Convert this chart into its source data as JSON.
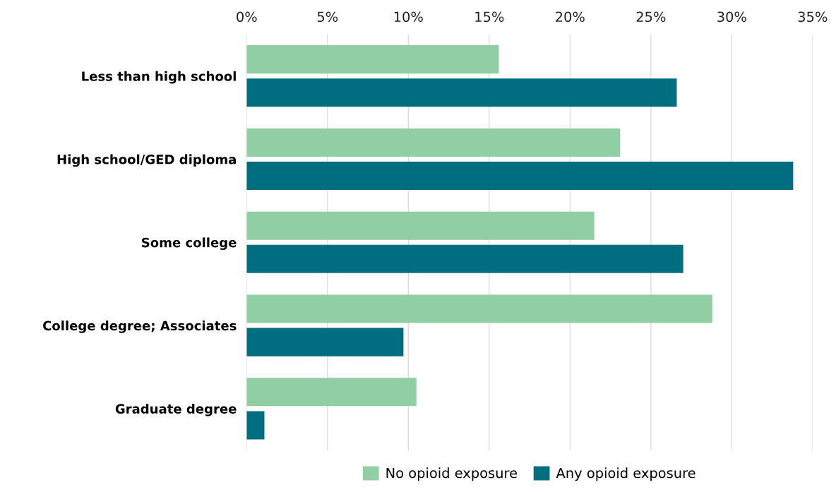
{
  "chart_data": {
    "type": "bar",
    "orientation": "horizontal",
    "categories": [
      "Less than high school",
      "High school/GED diploma",
      "Some college",
      "College degree; Associates",
      "Graduate degree"
    ],
    "series": [
      {
        "name": "No opioid exposure",
        "color": "#8fcfa3",
        "values": [
          15.6,
          23.1,
          21.5,
          28.8,
          10.5
        ]
      },
      {
        "name": "Any opioid exposure",
        "color": "#006e7f",
        "values": [
          26.6,
          33.8,
          27.0,
          9.7,
          1.1
        ]
      }
    ],
    "xlim": [
      0,
      35
    ],
    "xticks": [
      {
        "value": 0,
        "label": "0%"
      },
      {
        "value": 5,
        "label": "5%"
      },
      {
        "value": 10,
        "label": "10%"
      },
      {
        "value": 15,
        "label": "15%"
      },
      {
        "value": 20,
        "label": "20%"
      },
      {
        "value": 25,
        "label": "25%"
      },
      {
        "value": 30,
        "label": "30%"
      },
      {
        "value": 35,
        "label": "35%"
      }
    ],
    "grid": "x",
    "legend": "bottom"
  }
}
